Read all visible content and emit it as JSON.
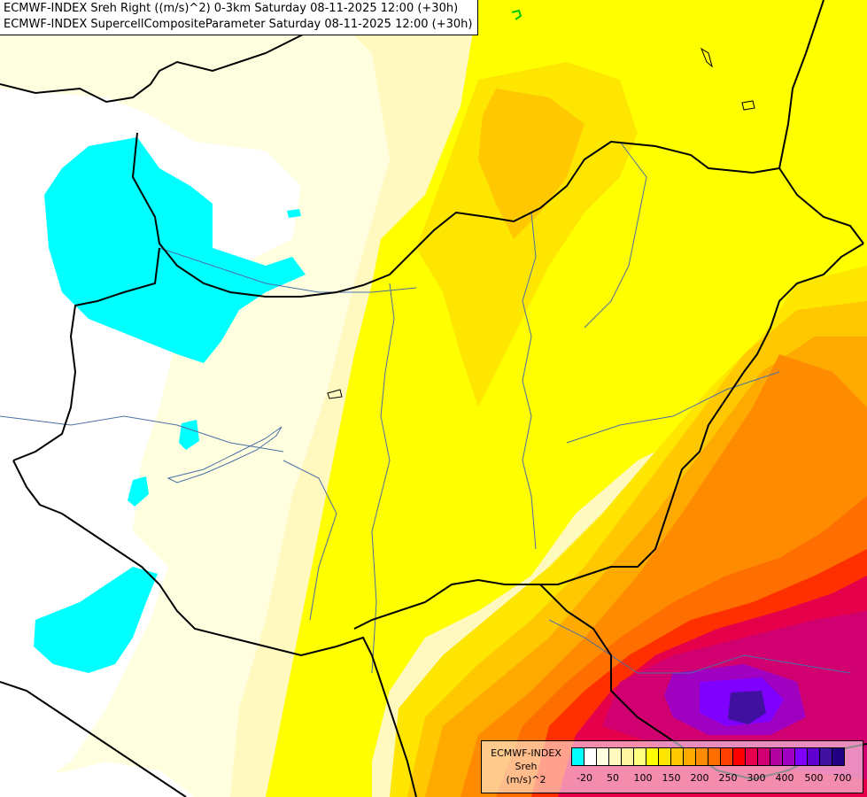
{
  "titles": {
    "line1": "ECMWF-INDEX Sreh Right ((m/s)^2) 0-3km Saturday 08-11-2025 12:00 (+30h)",
    "line2": "ECMWF-INDEX SupercellCompositeParameter Saturday 08-11-2025 12:00 (+30h)"
  },
  "legend": {
    "line1": "ECMWF-INDEX",
    "line2": "Sreh",
    "line3": "(m/s)^2",
    "colors": [
      "#00ffff",
      "#ffffff",
      "#ffffe0",
      "#fff9c0",
      "#fff5a0",
      "#ffff80",
      "#ffff00",
      "#ffe600",
      "#ffc800",
      "#ffaa00",
      "#ff8c00",
      "#ff6e00",
      "#ff4000",
      "#ff0000",
      "#e6004c",
      "#d00070",
      "#b000a0",
      "#a000c0",
      "#8000ff",
      "#6000d0",
      "#4010a0",
      "#200080"
    ],
    "ticks": [
      "-20",
      "50",
      "100",
      "150",
      "200",
      "250",
      "300",
      "400",
      "500",
      "700"
    ]
  },
  "map": {
    "colors": {
      "background": "#fff9c0",
      "pale": "#ffffe0",
      "white": "#ffffff",
      "cyan": "#00ffff",
      "yellow": "#ffff00",
      "gold": "#ffe600",
      "amber": "#ffc800",
      "orange": "#ffaa00",
      "dark_orange": "#ff8c00",
      "red_orange": "#ff6e00",
      "red": "#ff3000",
      "crimson": "#e6004c",
      "magenta": "#d00070",
      "purple": "#a000c0",
      "violet": "#8000ff",
      "indigo": "#4010a0",
      "border": "#000000",
      "river": "#4a6fa5",
      "green_blob": "#00cc00"
    }
  }
}
